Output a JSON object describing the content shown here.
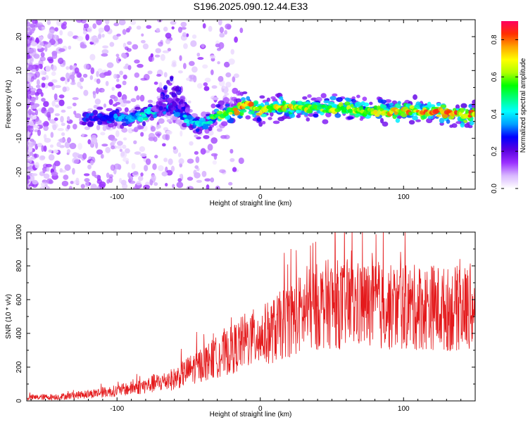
{
  "figure": {
    "title": "S196.2025.090.12.44.E33"
  },
  "colors": {
    "snr_line": "#e41a1c",
    "axes": "#000000",
    "background": "#ffffff",
    "colormap": [
      "#ffffff",
      "#d9b8ff",
      "#9b30ff",
      "#5a00e0",
      "#0000ff",
      "#00a0ff",
      "#00ffff",
      "#00ff80",
      "#00ff00",
      "#b0ff00",
      "#ffff00",
      "#ffa500",
      "#ff3000",
      "#ff0060"
    ]
  },
  "chart_data": [
    {
      "type": "heatmap",
      "title": "",
      "xlabel": "Height of straight line (km)",
      "ylabel": "Frequency (Hz)",
      "xlim": [
        -163,
        150
      ],
      "ylim": [
        -25,
        25
      ],
      "xticks": [
        -100,
        0,
        100
      ],
      "yticks": [
        -20,
        -10,
        0,
        10,
        20
      ],
      "colorbar": {
        "label": "Normalized spectral amplitude",
        "range": [
          0,
          0.9
        ],
        "ticks": [
          0.0,
          0.2,
          0.4,
          0.6,
          0.8
        ]
      },
      "ridge": {
        "description_x_km": [
          -160,
          -140,
          -120,
          -100,
          -90,
          -80,
          -70,
          -60,
          -55,
          -50,
          -45,
          -40,
          -35,
          -30,
          -20,
          -10,
          0,
          10,
          20,
          40,
          60,
          80,
          100,
          120,
          140,
          150
        ],
        "center_freq_hz": [
          -5,
          -5,
          -4,
          -4,
          -4,
          -3,
          -1,
          -1,
          -3,
          -5,
          -6,
          -6,
          -5,
          -3,
          -2,
          0,
          -2,
          -1,
          -1,
          -1,
          -1,
          -2,
          -2,
          -2,
          -3,
          -3
        ],
        "peak_amplitude": [
          0.15,
          0.2,
          0.3,
          0.35,
          0.4,
          0.45,
          0.4,
          0.35,
          0.35,
          0.45,
          0.4,
          0.4,
          0.5,
          0.6,
          0.7,
          0.85,
          0.7,
          0.7,
          0.75,
          0.6,
          0.65,
          0.7,
          0.75,
          0.8,
          0.8,
          0.75
        ]
      },
      "grid": false
    },
    {
      "type": "line",
      "title": "",
      "xlabel": "Height of straight line (km)",
      "ylabel": "SNR (10 * v/v)",
      "xlim": [
        -163,
        150
      ],
      "ylim": [
        0,
        1000
      ],
      "xticks": [
        -100,
        0,
        100
      ],
      "yticks": [
        0,
        200,
        400,
        600,
        800,
        1000
      ],
      "series": [
        {
          "x": [
            -160,
            -140,
            -120,
            -100,
            -80,
            -60,
            -50,
            -40,
            -30,
            -20,
            -10,
            0,
            10,
            20,
            30,
            40,
            50,
            60,
            70,
            80,
            90,
            100,
            110,
            120,
            130,
            140,
            150
          ],
          "y": [
            20,
            25,
            40,
            60,
            90,
            130,
            180,
            220,
            260,
            300,
            360,
            380,
            420,
            480,
            520,
            560,
            580,
            560,
            570,
            560,
            550,
            560,
            550,
            560,
            540,
            550,
            560
          ]
        }
      ],
      "grid": false
    }
  ]
}
